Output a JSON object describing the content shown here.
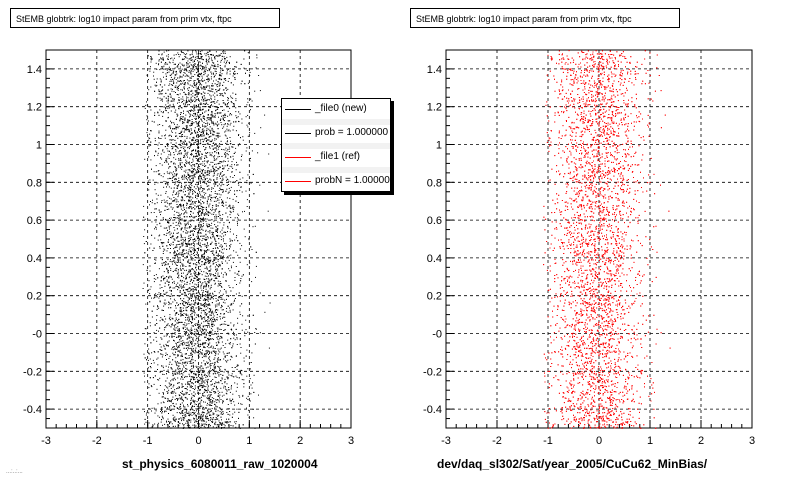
{
  "chart_data": [
    {
      "type": "scatter",
      "title": "StEMB globtrk: log10 impact param from prim vtx, ftpc",
      "xlabel": "st_physics_6080011_raw_1020004",
      "ylabel": "",
      "xlim": [
        -3,
        3
      ],
      "ylim": [
        -0.5,
        1.5
      ],
      "x_ticks": [
        "-3",
        "-2",
        "-1",
        "0",
        "1",
        "2",
        "3"
      ],
      "y_ticks": [
        "-0.4",
        "-0.2",
        "-0",
        "0.2",
        "0.4",
        "0.6",
        "0.8",
        "1",
        "1.2",
        "1.4"
      ],
      "grid": true,
      "marker_color": "#000000",
      "distribution": {
        "x_center": -0.05,
        "x_spread": 0.45,
        "x_range": [
          -1.1,
          1.4
        ],
        "y_range": [
          -0.5,
          1.5
        ],
        "density": "dense"
      },
      "legend": {
        "placement": "top-right",
        "entries": [
          {
            "label": "_file0 (new)",
            "color": "#000000"
          },
          {
            "label": "prob = 1.000000",
            "color": "#000000"
          },
          {
            "label": "_file1 (ref)",
            "color": "#ff0000"
          },
          {
            "label": "probN = 1.000000",
            "color": "#ff0000"
          }
        ]
      }
    },
    {
      "type": "scatter",
      "title": "StEMB globtrk: log10 impact param from prim vtx, ftpc",
      "xlabel": "dev/daq_sl302/Sat/year_2005/CuCu62_MinBias/",
      "ylabel": "",
      "xlim": [
        -3,
        3
      ],
      "ylim": [
        -0.5,
        1.5
      ],
      "x_ticks": [
        "-3",
        "-2",
        "-1",
        "0",
        "1",
        "2",
        "3"
      ],
      "y_ticks": [
        "-0.4",
        "-0.2",
        "-0",
        "0.2",
        "0.4",
        "0.6",
        "0.8",
        "1",
        "1.2",
        "1.4"
      ],
      "grid": true,
      "marker_color": "#ff0000",
      "distribution": {
        "x_center": -0.05,
        "x_spread": 0.45,
        "x_range": [
          -1.1,
          1.4
        ],
        "y_range": [
          -0.5,
          1.5
        ],
        "density": "dense"
      }
    }
  ],
  "footer_note": "...:..:..."
}
